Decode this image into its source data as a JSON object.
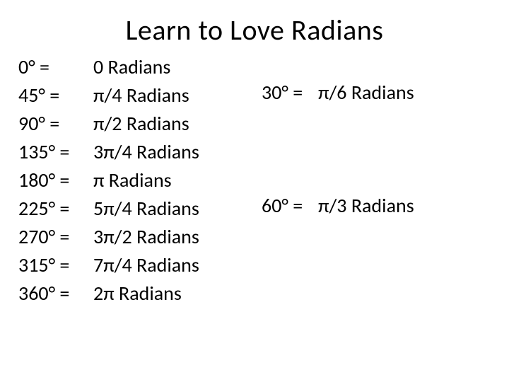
{
  "title": "Learn to Love Radians",
  "left": {
    "degrees": [
      "0° =",
      "45° =",
      "90° =",
      "135° =",
      "180° =",
      "225° =",
      "270° =",
      "315° =",
      "360° ="
    ],
    "radians": [
      "0 Radians",
      "π/4 Radians",
      "π/2 Radians",
      "3π/4 Radians",
      "π Radians",
      "5π/4 Radians",
      "3π/2 Radians",
      "7π/4 Radians",
      "2π Radians"
    ]
  },
  "right": {
    "row1_deg": "30° =",
    "row1_rad": "π/6 Radians",
    "row2_deg": "60° =",
    "row2_rad": "π/3 Radians"
  },
  "style": {
    "background_color": "#ffffff",
    "text_color": "#000000",
    "title_fontsize": 40,
    "body_fontsize": 28,
    "line_height": 1.43,
    "font_family": "Calibri, Arial, sans-serif"
  }
}
